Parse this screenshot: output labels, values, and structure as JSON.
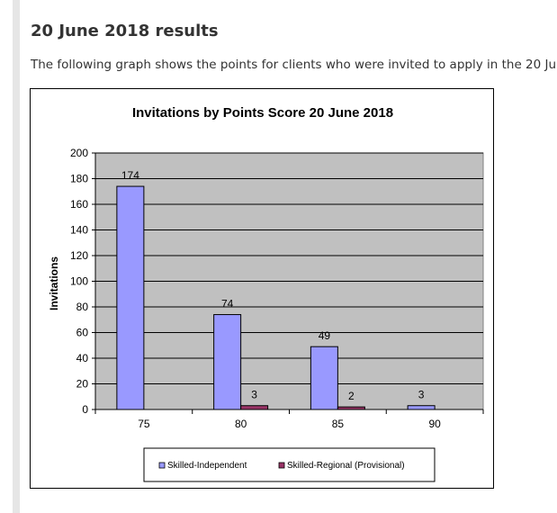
{
  "heading": "20 June 2018 results",
  "intro": "The following graph shows the points for clients who were invited to apply in the 20 Ju",
  "chart_data": {
    "type": "bar",
    "title": "Invitations by Points Score 20 June 2018",
    "xlabel": "",
    "ylabel": "Invitations",
    "ylim": [
      0,
      200
    ],
    "yticks": [
      0,
      20,
      40,
      60,
      80,
      100,
      120,
      140,
      160,
      180,
      200
    ],
    "categories": [
      "75",
      "80",
      "85",
      "90"
    ],
    "series": [
      {
        "name": "Skilled-Independent",
        "values": [
          174,
          74,
          49,
          3
        ],
        "labels": [
          "174",
          "74",
          "49",
          "3"
        ],
        "color": "#9999ff"
      },
      {
        "name": "Skilled-Regional (Provisional)",
        "values": [
          0,
          3,
          2,
          0
        ],
        "labels": [
          "",
          "3",
          "2",
          ""
        ],
        "color": "#993366"
      }
    ],
    "plot_background": "#c0c0c0",
    "grid": true,
    "legend_position": "bottom"
  }
}
